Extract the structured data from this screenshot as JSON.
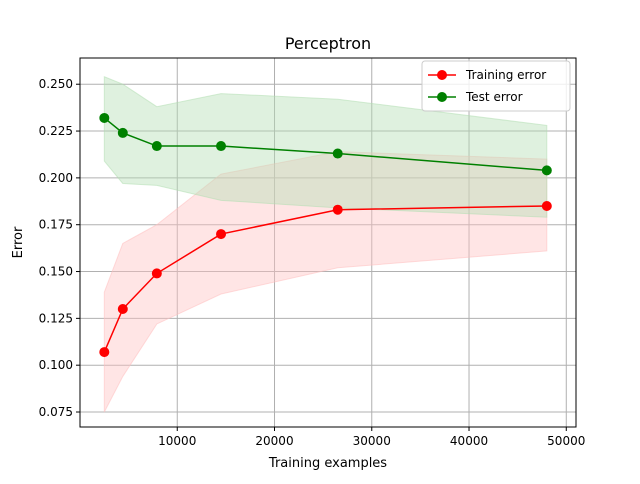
{
  "chart_data": {
    "type": "line",
    "title": "Perceptron",
    "xlabel": "Training examples",
    "ylabel": "Error",
    "xlim": [
      0,
      51000
    ],
    "ylim": [
      0.067,
      0.264
    ],
    "xticks": [
      10000,
      20000,
      30000,
      40000,
      50000
    ],
    "xtick_labels": [
      "10000",
      "20000",
      "30000",
      "40000",
      "50000"
    ],
    "yticks": [
      0.075,
      0.1,
      0.125,
      0.15,
      0.175,
      0.2,
      0.225,
      0.25
    ],
    "ytick_labels": [
      "0.075",
      "0.100",
      "0.125",
      "0.150",
      "0.175",
      "0.200",
      "0.225",
      "0.250"
    ],
    "grid": true,
    "legend_position": "upper right",
    "x": [
      2500,
      4400,
      7900,
      14500,
      26500,
      48000
    ],
    "series": [
      {
        "name": "Training error",
        "color": "#ff0000",
        "band_color": "#ffc0c0",
        "values": [
          0.107,
          0.13,
          0.149,
          0.17,
          0.183,
          0.185
        ],
        "lower": [
          0.075,
          0.094,
          0.122,
          0.138,
          0.152,
          0.161
        ],
        "upper": [
          0.139,
          0.165,
          0.175,
          0.202,
          0.214,
          0.21
        ]
      },
      {
        "name": "Test error",
        "color": "#008000",
        "band_color": "#b3deb3",
        "values": [
          0.232,
          0.224,
          0.217,
          0.217,
          0.213,
          0.204
        ],
        "lower": [
          0.209,
          0.197,
          0.196,
          0.188,
          0.184,
          0.179
        ],
        "upper": [
          0.254,
          0.25,
          0.238,
          0.245,
          0.242,
          0.228
        ]
      }
    ]
  }
}
